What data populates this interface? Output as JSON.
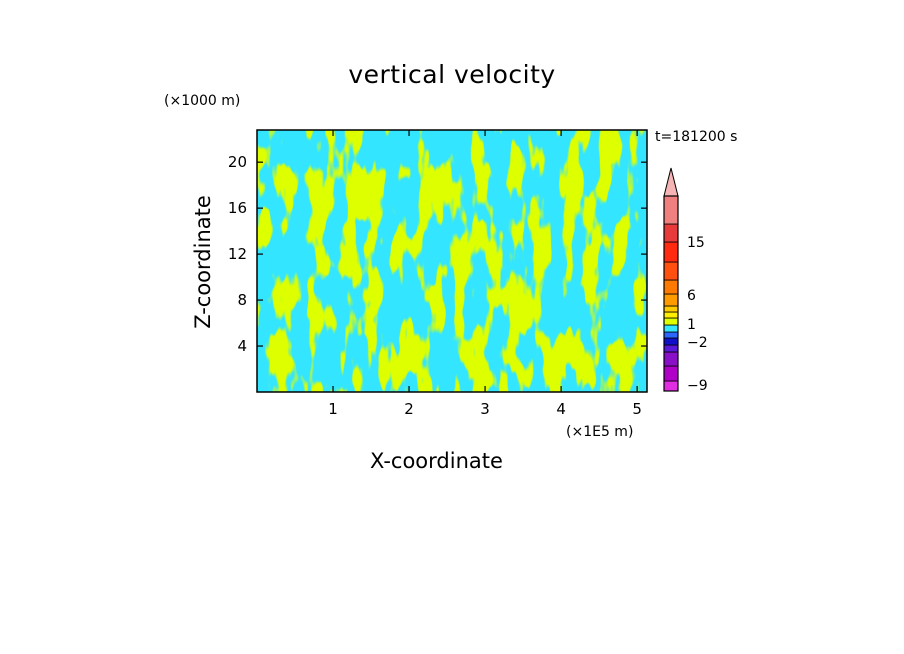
{
  "chart_data": {
    "type": "heatmap",
    "title": "vertical velocity",
    "xlabel": "X-coordinate",
    "ylabel": "Z-coordinate",
    "x_unit": "(×1E5 m)",
    "y_unit": "(×1000 m)",
    "time_label": "t=181200 s",
    "xlim": [
      0,
      5.13
    ],
    "ylim": [
      0,
      22.8
    ],
    "x_ticks": [
      "1",
      "2",
      "3",
      "4",
      "5"
    ],
    "y_ticks": [
      "4",
      "8",
      "12",
      "16",
      "20"
    ],
    "x_tick_values": [
      1,
      2,
      3,
      4,
      5
    ],
    "y_tick_values": [
      4,
      8,
      12,
      16,
      20
    ],
    "field_colors": {
      "negative": "#33e5ff",
      "positive": "#ddff00"
    },
    "colorbar": {
      "labels": [
        "15",
        "6",
        "1",
        "−2",
        "−9"
      ],
      "label_values": [
        15,
        6,
        1,
        -2,
        -9
      ],
      "extend_top": true,
      "bands_bottom_to_top": [
        {
          "color": "#e22ee2"
        },
        {
          "color": "#b000c8"
        },
        {
          "color": "#8a10c8"
        },
        {
          "color": "#5a18d8"
        },
        {
          "color": "#1010c8"
        },
        {
          "color": "#2a66ff"
        },
        {
          "color": "#33e5ff"
        },
        {
          "color": "#ddff00"
        },
        {
          "color": "#ffee00"
        },
        {
          "color": "#ffcc00"
        },
        {
          "color": "#ff9a00"
        },
        {
          "color": "#ff7a00"
        },
        {
          "color": "#ff5010"
        },
        {
          "color": "#ff2a10"
        },
        {
          "color": "#e83a3a"
        },
        {
          "color": "#f08080"
        },
        {
          "color": "#f6b4b4"
        }
      ]
    }
  }
}
